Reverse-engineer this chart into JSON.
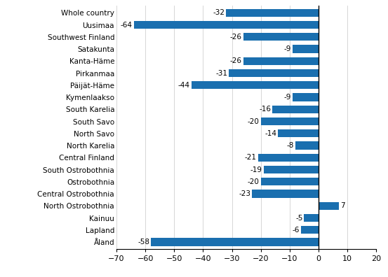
{
  "categories": [
    "Whole country",
    "Uusimaa",
    "Southwest Finland",
    "Satakunta",
    "Kanta-Häme",
    "Pirkanmaa",
    "Päijät-Häme",
    "Kymenlaakso",
    "South Karelia",
    "South Savo",
    "North Savo",
    "North Karelia",
    "Central Finland",
    "South Ostrobothnia",
    "Ostrobothnia",
    "Central Ostrobothnia",
    "North Ostrobothnia",
    "Kainuu",
    "Lapland",
    "Åland"
  ],
  "values": [
    -32,
    -64,
    -26,
    -9,
    -26,
    -31,
    -44,
    -9,
    -16,
    -20,
    -14,
    -8,
    -21,
    -19,
    -20,
    -23,
    7,
    -5,
    -6,
    -58
  ],
  "xlim": [
    -70,
    20
  ],
  "xticks": [
    -70,
    -60,
    -50,
    -40,
    -30,
    -20,
    -10,
    0,
    10,
    20
  ],
  "label_fontsize": 7.5,
  "tick_fontsize": 8.0,
  "bar_height": 0.65,
  "figure_width": 5.53,
  "figure_height": 3.96,
  "dpi": 100,
  "grid_color": "#d0d0d0",
  "bar_blue": "#1a6faf"
}
